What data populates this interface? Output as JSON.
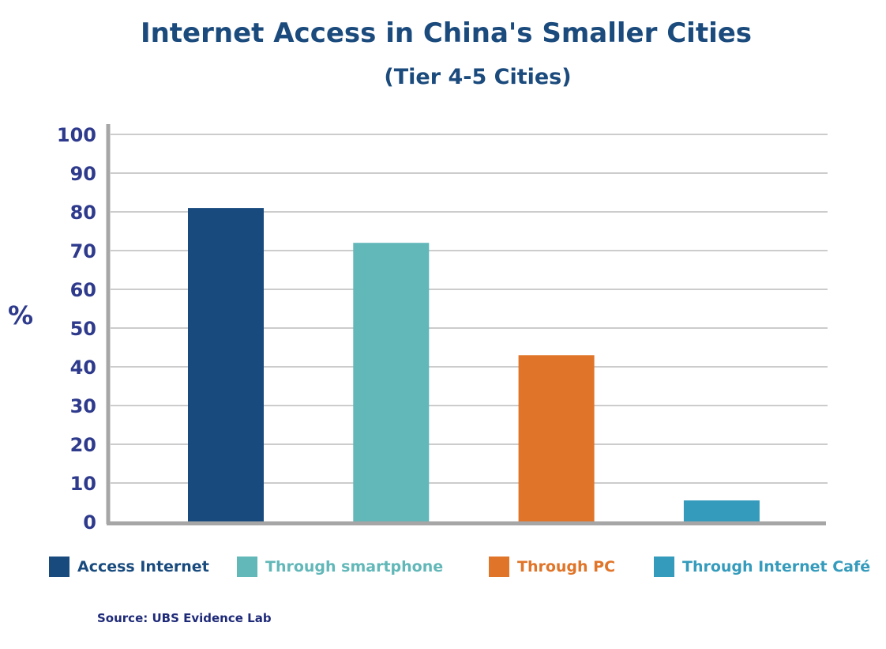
{
  "chart_data": {
    "type": "bar",
    "title": "Internet Access in China's Smaller Cities",
    "subtitle": "(Tier 4-5 Cities)",
    "ylabel": "%",
    "xlabel": "",
    "ylim": [
      0,
      100
    ],
    "yticks": [
      0,
      10,
      20,
      30,
      40,
      50,
      60,
      70,
      80,
      90,
      100
    ],
    "grid": true,
    "legend_position": "bottom",
    "categories": [
      "Access Internet",
      "Through smartphone",
      "Through PC",
      "Through Internet Café"
    ],
    "values": [
      81,
      72,
      43,
      5.5
    ],
    "colors": [
      "#184a7e",
      "#62b7b8",
      "#e07428",
      "#349bbc"
    ]
  },
  "source": "Source: UBS Evidence Lab",
  "colors": {
    "title": "#1b4a7c",
    "axis_text": "#2e3a8c",
    "grid": "#cccccc",
    "axis": "#a6a6a6"
  }
}
